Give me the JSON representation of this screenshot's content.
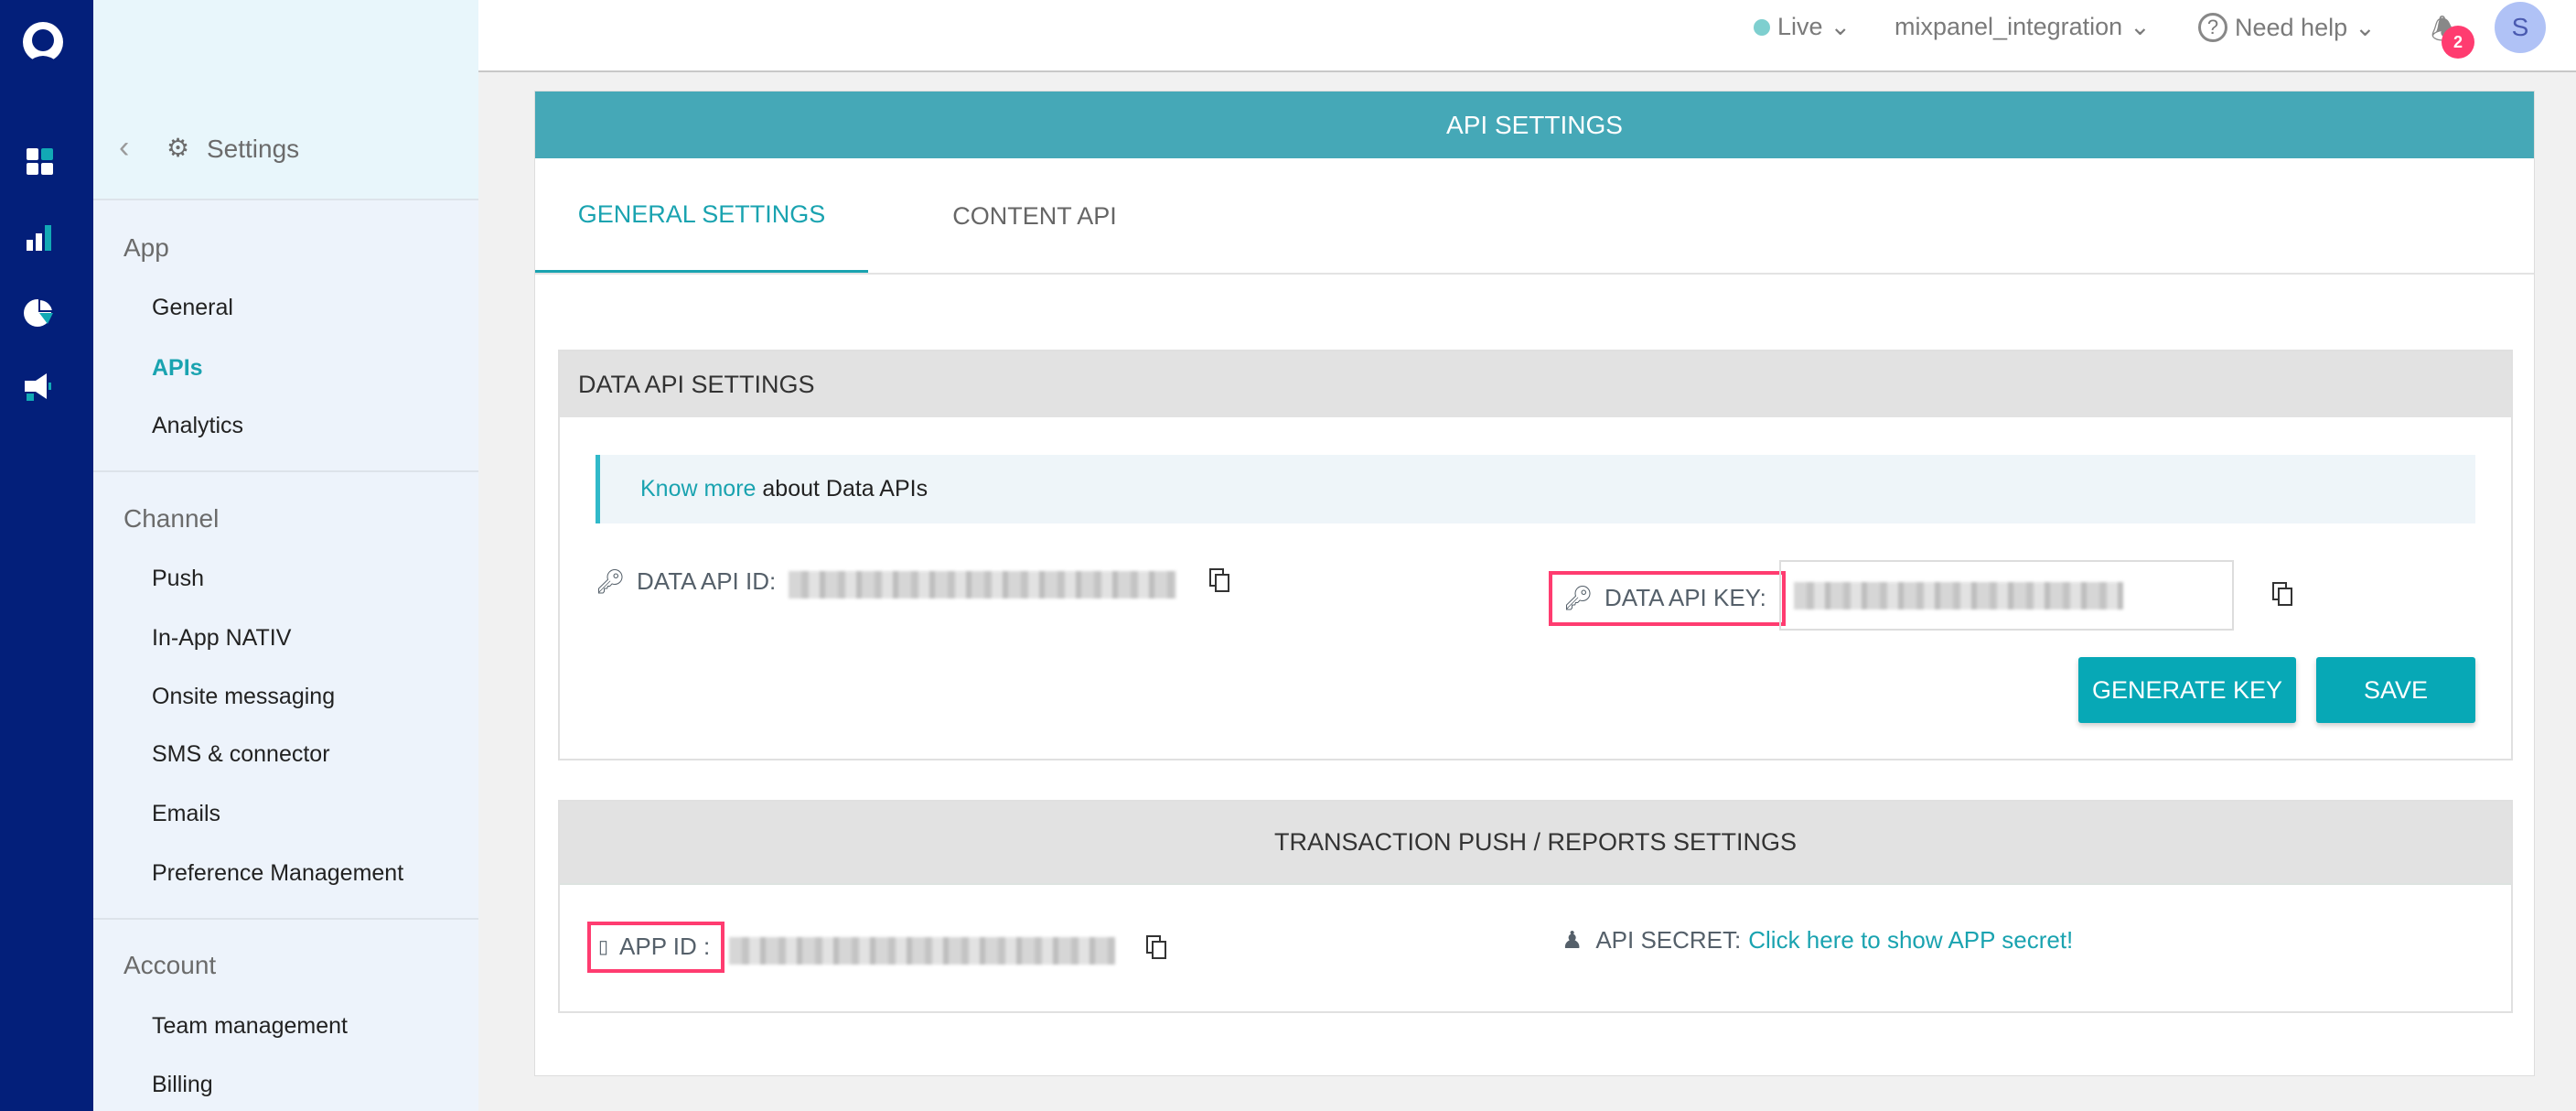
{
  "topbar": {
    "env": "Live",
    "env_color": "#7ecfcf",
    "app": "mixpanel_integration",
    "help": "Need help",
    "notifications": "2",
    "avatar": "S"
  },
  "sidebar": {
    "title": "Settings",
    "sections": [
      {
        "label": "App",
        "items": [
          "General",
          "APIs",
          "Analytics"
        ]
      },
      {
        "label": "Channel",
        "items": [
          "Push",
          "In-App NATIV",
          "Onsite messaging",
          "SMS & connector",
          "Emails",
          "Preference Management"
        ]
      },
      {
        "label": "Account",
        "items": [
          "Team management",
          "Billing"
        ]
      }
    ],
    "active": "APIs"
  },
  "panel": {
    "title": "API SETTINGS",
    "tabs": [
      "GENERAL SETTINGS",
      "CONTENT API"
    ],
    "active_tab": "GENERAL SETTINGS"
  },
  "data_api": {
    "title": "DATA API SETTINGS",
    "info_link": "Know more",
    "info_text": " about Data APIs",
    "id_label": "DATA API ID:",
    "key_label": "DATA API KEY:",
    "generate": "GENERATE KEY",
    "save": "SAVE"
  },
  "transaction": {
    "title": "TRANSACTION PUSH / REPORTS SETTINGS",
    "app_id_label": "APP ID :",
    "secret_label": "API SECRET:",
    "secret_link": "Click here to show APP secret!"
  },
  "colors": {
    "rail": "#031f7a",
    "accent": "#07a8b6",
    "header": "#45a8b7",
    "highlight": "#ff3c70"
  }
}
